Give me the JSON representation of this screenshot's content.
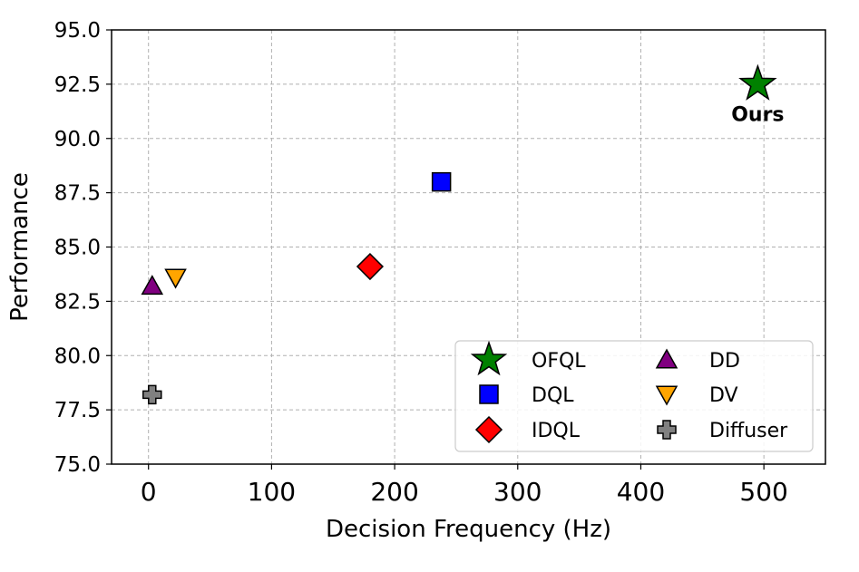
{
  "chart_data": {
    "type": "scatter",
    "title": "",
    "xlabel": "Decision Frequency (Hz)",
    "ylabel": "Performance",
    "xlim": [
      -30,
      550
    ],
    "ylim": [
      75.0,
      95.0
    ],
    "xticks": [
      0,
      100,
      200,
      300,
      400,
      500
    ],
    "yticks": [
      75.0,
      77.5,
      80.0,
      82.5,
      85.0,
      87.5,
      90.0,
      92.5,
      95.0
    ],
    "xtick_labels": [
      "0",
      "100",
      "200",
      "300",
      "400",
      "500"
    ],
    "ytick_labels": [
      "75.0",
      "77.5",
      "80.0",
      "82.5",
      "85.0",
      "87.5",
      "90.0",
      "92.5",
      "95.0"
    ],
    "grid": true,
    "legend_position": "lower-right",
    "series": [
      {
        "name": "OFQL",
        "x": 495,
        "y": 92.5,
        "marker": "star",
        "color": "#008000"
      },
      {
        "name": "DQL",
        "x": 238,
        "y": 88.0,
        "marker": "square",
        "color": "#0000ff"
      },
      {
        "name": "IDQL",
        "x": 180,
        "y": 84.1,
        "marker": "diamond",
        "color": "#ff0000"
      },
      {
        "name": "DD",
        "x": 3,
        "y": 83.2,
        "marker": "triangle-up",
        "color": "#800080"
      },
      {
        "name": "DV",
        "x": 22,
        "y": 83.6,
        "marker": "triangle-down",
        "color": "#ffa500"
      },
      {
        "name": "Diffuser",
        "x": 3,
        "y": 78.2,
        "marker": "plus",
        "color": "#808080"
      }
    ],
    "annotations": [
      {
        "text": "Ours",
        "x": 495,
        "y": 90.8
      }
    ]
  }
}
